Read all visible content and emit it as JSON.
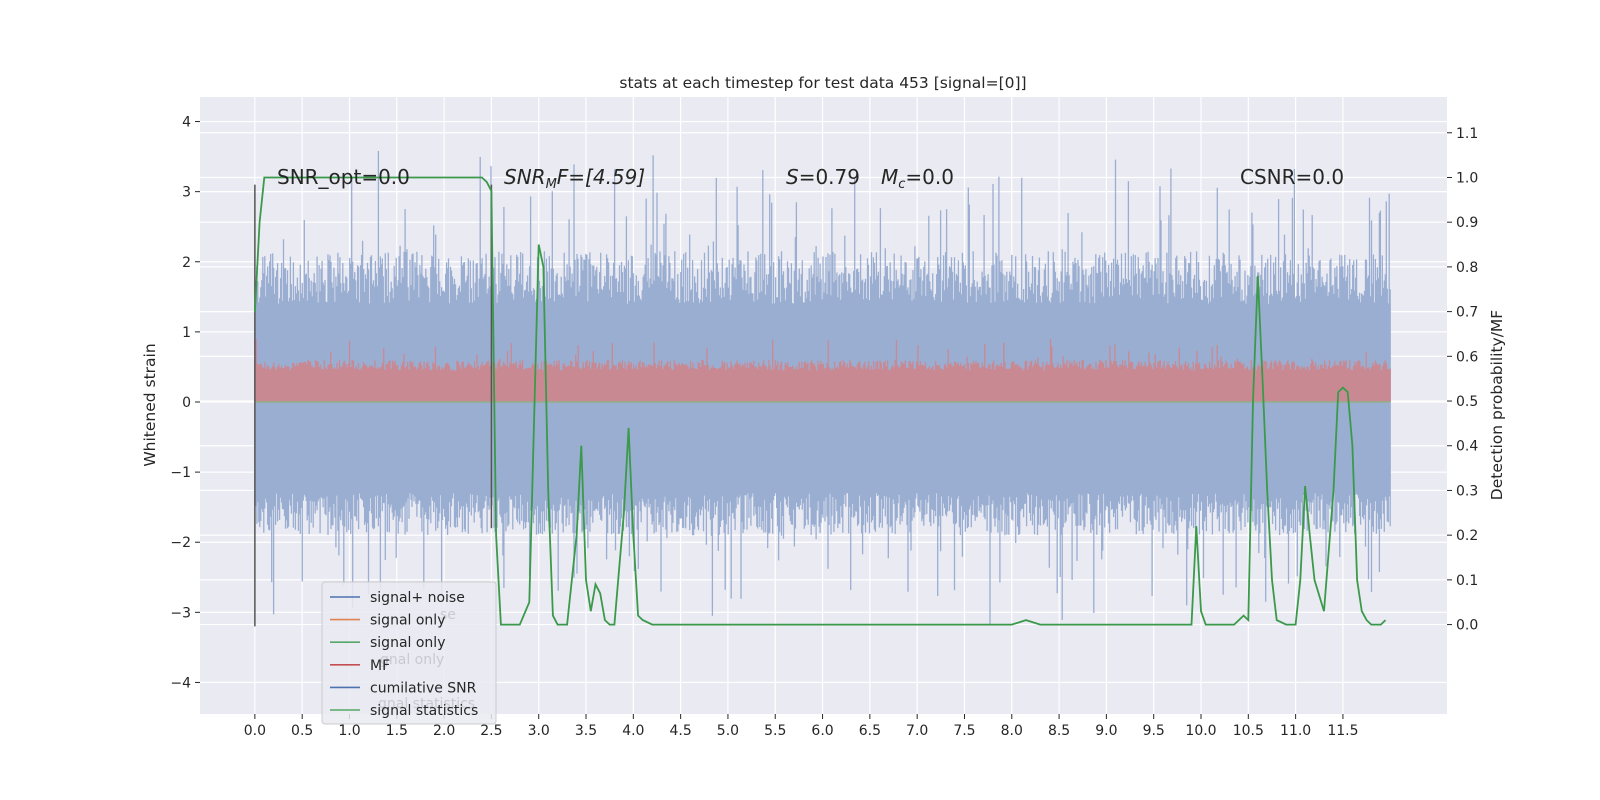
{
  "chart_data": {
    "type": "line",
    "title": "stats at each timestep for test data 453 [signal=[0]]",
    "ylabel": "Whitened strain",
    "ylabel_right": "Detection probability/MF",
    "xlim": [
      -0.58,
      12.6
    ],
    "ylim": [
      -4.45,
      4.35
    ],
    "ylim_right": [
      -0.2,
      1.18
    ],
    "grid": true,
    "legend_position": "lower-left",
    "x_ticks": [
      "0.0",
      "0.5",
      "1.0",
      "1.5",
      "2.0",
      "2.5",
      "3.0",
      "3.5",
      "4.0",
      "4.5",
      "5.0",
      "5.5",
      "6.0",
      "6.5",
      "7.0",
      "7.5",
      "8.0",
      "8.5",
      "9.0",
      "9.5",
      "10.0",
      "10.5",
      "11.0",
      "11.5"
    ],
    "y_ticks": [
      "4",
      "3",
      "2",
      "1",
      "0",
      "−1",
      "−2",
      "−3",
      "−4"
    ],
    "y_ticks_right": [
      "1.1",
      "1.0",
      "0.9",
      "0.8",
      "0.7",
      "0.6",
      "0.5",
      "0.4",
      "0.3",
      "0.2",
      "0.1",
      "0.0"
    ],
    "annotations": {
      "snr_opt": "SNR_opt=0.0",
      "snr_mf_base": "SNR",
      "snr_mf_sub": "M",
      "snr_mf_rest": "F=[4.59]",
      "s_label": "S",
      "s_rest": "=0.79",
      "mc_label": "M",
      "mc_sub": "c",
      "mc_rest": "=0.0",
      "csnr": "CSNR=0.0"
    },
    "series": [
      {
        "name": "signal+ noise",
        "color": "#4c72b0",
        "axis": "left",
        "x_range": [
          0.0,
          12.0
        ],
        "envelope": [
          -4.1,
          3.9
        ]
      },
      {
        "name": "signal only",
        "color": "#dd8452",
        "axis": "left"
      },
      {
        "name": "signal only",
        "color": "#55a868",
        "axis": "left"
      },
      {
        "name": "MF",
        "color": "#c44e52",
        "axis": "left",
        "x_range": [
          0.0,
          12.0
        ],
        "envelope": [
          0.0,
          0.9
        ]
      },
      {
        "name": "cumilative SNR",
        "color": "#4c72b0",
        "axis": "left"
      },
      {
        "name": "signal statistics",
        "color": "#55a868",
        "axis": "right",
        "x": [
          0.0,
          0.05,
          0.1,
          0.15,
          2.3,
          2.4,
          2.45,
          2.5,
          2.55,
          2.6,
          2.7,
          2.8,
          2.9,
          3.0,
          3.05,
          3.1,
          3.15,
          3.2,
          3.25,
          3.3,
          3.4,
          3.45,
          3.5,
          3.55,
          3.6,
          3.65,
          3.7,
          3.75,
          3.8,
          3.9,
          3.95,
          4.0,
          4.05,
          4.1,
          4.2,
          8.0,
          8.15,
          8.3,
          9.9,
          9.95,
          10.0,
          10.05,
          10.1,
          10.35,
          10.45,
          10.5,
          10.55,
          10.6,
          10.65,
          10.7,
          10.75,
          10.8,
          10.9,
          11.0,
          11.05,
          11.1,
          11.15,
          11.2,
          11.3,
          11.4,
          11.45,
          11.5,
          11.55,
          11.6,
          11.65,
          11.7,
          11.75,
          11.8,
          11.9,
          11.95
        ],
        "y": [
          0.7,
          0.9,
          1.0,
          1.0,
          1.0,
          1.0,
          0.99,
          0.97,
          0.2,
          0.0,
          0.0,
          0.0,
          0.05,
          0.85,
          0.8,
          0.3,
          0.02,
          0.0,
          0.0,
          0.0,
          0.2,
          0.4,
          0.1,
          0.03,
          0.09,
          0.07,
          0.01,
          0.0,
          0.0,
          0.25,
          0.44,
          0.2,
          0.02,
          0.01,
          0.0,
          0.0,
          0.01,
          0.0,
          0.0,
          0.22,
          0.03,
          0.0,
          0.0,
          0.0,
          0.02,
          0.01,
          0.5,
          0.78,
          0.55,
          0.3,
          0.1,
          0.01,
          0.0,
          0.0,
          0.1,
          0.31,
          0.2,
          0.1,
          0.03,
          0.3,
          0.52,
          0.53,
          0.52,
          0.4,
          0.1,
          0.03,
          0.01,
          0.0,
          0.0,
          0.01
        ]
      },
      {
        "name": "vertical marker",
        "color": "#555555",
        "axis": "left",
        "x": [
          0.0,
          0.0
        ],
        "y": [
          -3.2,
          3.1
        ]
      },
      {
        "name": "vertical marker",
        "color": "#555555",
        "axis": "left",
        "x": [
          2.5,
          2.5
        ],
        "y": [
          -1.8,
          3.1
        ]
      }
    ],
    "legend": {
      "entries": [
        {
          "label": "signal+ noise",
          "color": "#4c72b0"
        },
        {
          "label": "signal only",
          "color": "#dd8452"
        },
        {
          "label": "signal only",
          "color": "#55a868"
        },
        {
          "label": "MF",
          "color": "#c44e52"
        },
        {
          "label": "cumilative SNR",
          "color": "#4c72b0"
        },
        {
          "label": "signal statistics",
          "color": "#55a868"
        }
      ],
      "ghost_entries": [
        "se",
        "gnal only",
        "gnal statistics"
      ]
    },
    "colors": {
      "axes_bg": "#eaeaf2",
      "grid": "#ffffff",
      "noise_fill": "#9aaed2",
      "mf_fill": "#c98993",
      "stat_line": "#3a9a4a"
    }
  }
}
